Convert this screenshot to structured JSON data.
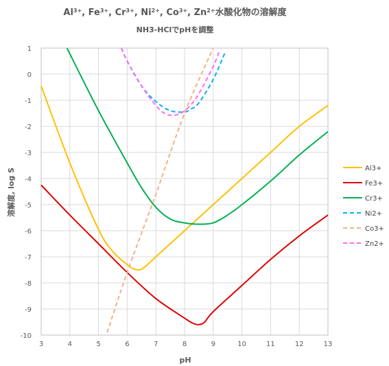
{
  "chart_data": {
    "type": "line",
    "title_parts": [
      {
        "t": "Al"
      },
      {
        "t": "3+",
        "sup": true
      },
      {
        "t": ", Fe"
      },
      {
        "t": "3+",
        "sup": true
      },
      {
        "t": ", Cr"
      },
      {
        "t": "3+",
        "sup": true
      },
      {
        "t": ", Ni"
      },
      {
        "t": "2+",
        "sup": true
      },
      {
        "t": ", Co"
      },
      {
        "t": "3+",
        "sup": true
      },
      {
        "t": ", Zn"
      },
      {
        "t": "2+",
        "sup": true
      },
      {
        "t": "水酸化物の溶解度"
      }
    ],
    "subtitle": "NH3-HClでpHを調整",
    "xlabel": "pH",
    "ylabel": "溶解度, log S",
    "xlim": [
      3,
      13
    ],
    "ylim": [
      -10,
      1
    ],
    "xticks": [
      3,
      4,
      5,
      6,
      7,
      8,
      9,
      10,
      11,
      12,
      13
    ],
    "yticks": [
      1,
      0,
      -1,
      -2,
      -3,
      -4,
      -5,
      -6,
      -7,
      -8,
      -9,
      -10
    ],
    "grid": true,
    "legend_position": "right",
    "series": [
      {
        "name": "Al3+",
        "color": "#FFC000",
        "dash": "solid",
        "x": [
          3,
          4,
          5,
          5.5,
          6,
          6.2,
          6.4,
          6.6,
          7,
          8,
          9,
          10,
          11,
          12,
          13
        ],
        "y": [
          -0.45,
          -3.4,
          -5.95,
          -6.8,
          -7.3,
          -7.45,
          -7.5,
          -7.4,
          -7.0,
          -6.0,
          -5.0,
          -4.0,
          -3.0,
          -2.0,
          -1.2
        ]
      },
      {
        "name": "Fe3+",
        "color": "#E00000",
        "dash": "solid",
        "x": [
          3,
          4,
          5,
          6,
          7,
          8,
          8.3,
          8.5,
          8.7,
          9,
          10,
          11,
          12,
          13
        ],
        "y": [
          -4.25,
          -5.4,
          -6.5,
          -7.6,
          -8.6,
          -9.35,
          -9.55,
          -9.6,
          -9.5,
          -9.1,
          -8.1,
          -7.1,
          -6.2,
          -5.4
        ]
      },
      {
        "name": "Cr3+",
        "color": "#00B050",
        "dash": "solid",
        "x": [
          3.9,
          5,
          6,
          6.5,
          7,
          7.5,
          8,
          8.5,
          9,
          9.5,
          10,
          11,
          12,
          13
        ],
        "y": [
          1.0,
          -1.4,
          -3.4,
          -4.35,
          -5.1,
          -5.55,
          -5.7,
          -5.75,
          -5.7,
          -5.4,
          -5.0,
          -4.1,
          -3.1,
          -2.2
        ]
      },
      {
        "name": "Ni2+",
        "color": "#00B0F0",
        "dash": "dashed",
        "x": [
          5.8,
          6,
          6.5,
          7,
          7.5,
          8,
          8.2,
          8.5,
          9,
          9.4
        ],
        "y": [
          1.0,
          0.5,
          -0.45,
          -1.05,
          -1.4,
          -1.45,
          -1.35,
          -1.1,
          -0.2,
          0.8
        ]
      },
      {
        "name": "Co3+",
        "color": "#F4B183",
        "dash": "dashed",
        "x": [
          5.3,
          6,
          7,
          8,
          9
        ],
        "y": [
          -9.9,
          -7.6,
          -4.6,
          -1.5,
          1.0
        ]
      },
      {
        "name": "Zn2+",
        "color": "#FF66FF",
        "dash": "dashed",
        "x": [
          5.8,
          6,
          6.5,
          7,
          7.3,
          7.6,
          7.9,
          8.2,
          8.5,
          9,
          9.2
        ],
        "y": [
          1.0,
          0.5,
          -0.45,
          -1.2,
          -1.5,
          -1.58,
          -1.48,
          -1.2,
          -0.75,
          0.3,
          0.85
        ]
      }
    ]
  }
}
